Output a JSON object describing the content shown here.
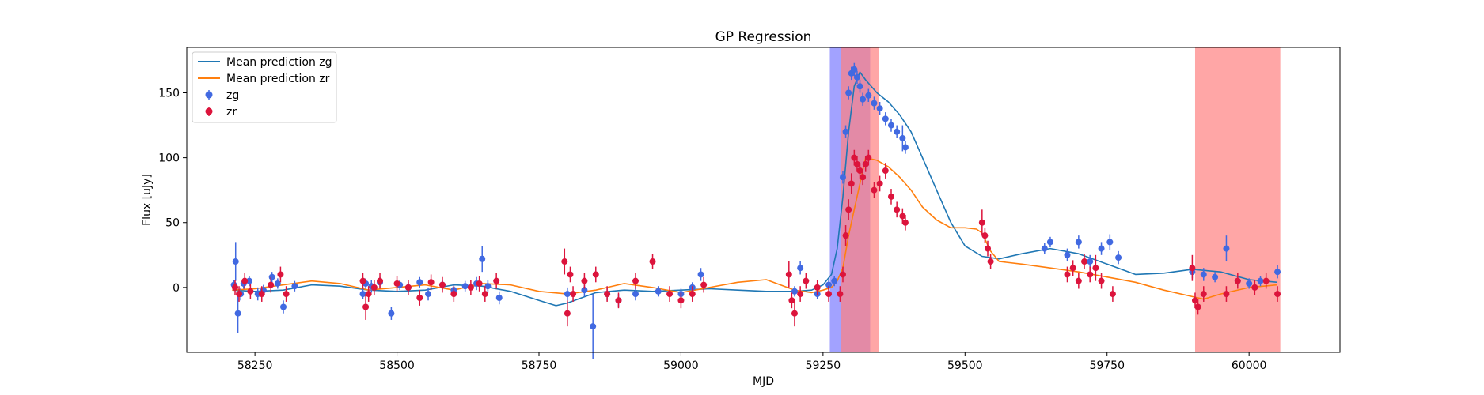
{
  "chart_data": {
    "type": "scatter",
    "title": "GP Regression",
    "xlabel": "MJD",
    "ylabel": "Flux [uJy]",
    "xlim": [
      58130,
      60160
    ],
    "ylim": [
      -50,
      185
    ],
    "xticks": [
      58250,
      58500,
      58750,
      59000,
      59250,
      59500,
      59750,
      60000
    ],
    "yticks": [
      0,
      50,
      100,
      150
    ],
    "legend_position": "top-left",
    "colors": {
      "zg_line": "#1f77b4",
      "zr_line": "#ff7f0e",
      "zg_points": "#4169e1",
      "zr_points": "#dc143c",
      "band_blue": "#7b7bff",
      "band_red": "#ff8080"
    },
    "shaded_regions": [
      {
        "x0": 59262,
        "x1": 59333,
        "color": "blue"
      },
      {
        "x0": 59282,
        "x1": 59348,
        "color": "red"
      },
      {
        "x0": 59905,
        "x1": 60055,
        "color": "red"
      }
    ],
    "series": [
      {
        "name": "Mean prediction zg",
        "kind": "line",
        "x": [
          58210,
          58250,
          58300,
          58350,
          58400,
          58450,
          58500,
          58550,
          58600,
          58650,
          58700,
          58750,
          58780,
          58800,
          58850,
          58900,
          58950,
          59000,
          59050,
          59100,
          59150,
          59200,
          59230,
          59250,
          59265,
          59275,
          59285,
          59295,
          59305,
          59315,
          59325,
          59345,
          59365,
          59385,
          59405,
          59425,
          59450,
          59475,
          59500,
          59530,
          59560,
          59600,
          59650,
          59700,
          59750,
          59800,
          59850,
          59900,
          59950,
          60000,
          60050
        ],
        "y": [
          -2,
          -3,
          -2,
          2,
          1,
          -2,
          -3,
          -2,
          2,
          1,
          -3,
          -10,
          -14,
          -12,
          -4,
          -2,
          -3,
          -2,
          -1,
          -2,
          -3,
          -3,
          -2,
          2,
          10,
          30,
          70,
          120,
          155,
          166,
          160,
          150,
          143,
          133,
          120,
          100,
          75,
          50,
          32,
          24,
          22,
          26,
          30,
          26,
          18,
          10,
          11,
          14,
          12,
          6,
          4
        ]
      },
      {
        "name": "Mean prediction zr",
        "kind": "line",
        "x": [
          58210,
          58250,
          58300,
          58350,
          58400,
          58450,
          58500,
          58550,
          58600,
          58650,
          58700,
          58750,
          58800,
          58850,
          58900,
          58950,
          59000,
          59050,
          59100,
          59150,
          59200,
          59230,
          59250,
          59265,
          59275,
          59285,
          59295,
          59305,
          59315,
          59325,
          59345,
          59365,
          59385,
          59405,
          59425,
          59450,
          59475,
          59500,
          59520,
          59530,
          59545,
          59560,
          59600,
          59650,
          59700,
          59750,
          59800,
          59850,
          59900,
          59920,
          59950,
          60000,
          60050
        ],
        "y": [
          -2,
          -1,
          2,
          5,
          3,
          -2,
          0,
          2,
          -2,
          3,
          2,
          -3,
          -5,
          -2,
          3,
          0,
          -4,
          0,
          4,
          6,
          -2,
          -4,
          -2,
          0,
          5,
          15,
          40,
          60,
          80,
          100,
          98,
          93,
          85,
          75,
          62,
          52,
          46,
          46,
          45,
          42,
          28,
          20,
          18,
          15,
          12,
          8,
          4,
          -2,
          -7,
          -9,
          -5,
          0,
          2
        ]
      },
      {
        "name": "zg",
        "kind": "errorbar",
        "x": [
          58213,
          58216,
          58220,
          58225,
          58230,
          58240,
          58255,
          58265,
          58280,
          58290,
          58300,
          58320,
          58440,
          58445,
          58455,
          58470,
          58490,
          58505,
          58520,
          58540,
          58555,
          58580,
          58600,
          58620,
          58640,
          58650,
          58660,
          58680,
          58800,
          58830,
          58845,
          58870,
          58890,
          58920,
          58960,
          59000,
          59020,
          59035,
          59200,
          59210,
          59240,
          59260,
          59270,
          59285,
          59290,
          59295,
          59300,
          59305,
          59310,
          59315,
          59320,
          59330,
          59340,
          59350,
          59360,
          59370,
          59380,
          59390,
          59395,
          59640,
          59650,
          59680,
          59700,
          59720,
          59740,
          59755,
          59770,
          59900,
          59920,
          59940,
          59960,
          59980,
          60000,
          60020,
          60050
        ],
        "y": [
          2,
          20,
          -20,
          -5,
          3,
          5,
          -5,
          -2,
          8,
          3,
          -15,
          1,
          -5,
          3,
          1,
          4,
          -20,
          2,
          0,
          4,
          -5,
          2,
          -2,
          1,
          3,
          22,
          1,
          -8,
          -5,
          -2,
          -30,
          -5,
          -10,
          -5,
          -3,
          -5,
          0,
          10,
          -3,
          15,
          -5,
          2,
          5,
          85,
          120,
          150,
          165,
          168,
          162,
          155,
          145,
          148,
          142,
          138,
          130,
          125,
          120,
          115,
          108,
          30,
          35,
          25,
          35,
          20,
          30,
          35,
          23,
          12,
          10,
          8,
          30,
          5,
          3,
          5,
          12
        ],
        "err": [
          4,
          15,
          15,
          5,
          4,
          4,
          5,
          4,
          4,
          4,
          5,
          4,
          4,
          4,
          5,
          4,
          5,
          4,
          4,
          4,
          5,
          4,
          4,
          4,
          5,
          10,
          5,
          5,
          5,
          5,
          25,
          5,
          5,
          5,
          4,
          4,
          4,
          5,
          4,
          5,
          4,
          4,
          4,
          5,
          5,
          5,
          5,
          5,
          5,
          5,
          5,
          5,
          5,
          5,
          5,
          5,
          5,
          10,
          5,
          4,
          4,
          5,
          5,
          5,
          5,
          6,
          5,
          5,
          5,
          4,
          10,
          4,
          4,
          4,
          5
        ]
      },
      {
        "name": "zr",
        "kind": "errorbar",
        "x": [
          58215,
          58222,
          58232,
          58242,
          58262,
          58278,
          58295,
          58305,
          58440,
          58445,
          58450,
          58460,
          58470,
          58500,
          58520,
          58540,
          58560,
          58580,
          58600,
          58630,
          58645,
          58655,
          58675,
          58795,
          58800,
          58805,
          58810,
          58830,
          58850,
          58870,
          58890,
          58920,
          58950,
          58980,
          59000,
          59020,
          59040,
          59190,
          59195,
          59200,
          59210,
          59220,
          59240,
          59260,
          59280,
          59285,
          59290,
          59295,
          59300,
          59305,
          59310,
          59315,
          59320,
          59325,
          59330,
          59340,
          59350,
          59360,
          59370,
          59380,
          59390,
          59395,
          59530,
          59535,
          59540,
          59545,
          59680,
          59690,
          59700,
          59710,
          59720,
          59730,
          59740,
          59760,
          59900,
          59905,
          59910,
          59920,
          59960,
          59980,
          60010,
          60030,
          60050
        ],
        "y": [
          0,
          -5,
          5,
          -3,
          -5,
          2,
          10,
          -5,
          5,
          -15,
          -5,
          0,
          5,
          3,
          0,
          -8,
          4,
          2,
          -5,
          0,
          3,
          -5,
          5,
          20,
          -20,
          10,
          -5,
          5,
          10,
          -5,
          -10,
          5,
          20,
          -5,
          -10,
          -5,
          2,
          10,
          -10,
          -20,
          -5,
          5,
          0,
          -5,
          -5,
          10,
          40,
          60,
          80,
          100,
          95,
          90,
          85,
          95,
          100,
          75,
          80,
          90,
          70,
          60,
          55,
          50,
          50,
          40,
          30,
          20,
          10,
          15,
          5,
          20,
          10,
          15,
          5,
          -5,
          15,
          -10,
          -15,
          -5,
          -5,
          5,
          0,
          5,
          -5
        ],
        "err": [
          6,
          6,
          6,
          6,
          6,
          6,
          6,
          6,
          6,
          10,
          6,
          6,
          6,
          6,
          6,
          6,
          6,
          6,
          6,
          6,
          6,
          6,
          6,
          10,
          10,
          6,
          6,
          6,
          6,
          6,
          6,
          6,
          6,
          6,
          6,
          6,
          6,
          10,
          6,
          10,
          6,
          6,
          6,
          6,
          6,
          6,
          8,
          8,
          8,
          6,
          6,
          6,
          6,
          6,
          6,
          6,
          6,
          6,
          6,
          6,
          6,
          6,
          10,
          6,
          6,
          6,
          6,
          6,
          6,
          6,
          6,
          10,
          6,
          6,
          10,
          6,
          6,
          6,
          6,
          6,
          6,
          6,
          6
        ]
      }
    ]
  }
}
